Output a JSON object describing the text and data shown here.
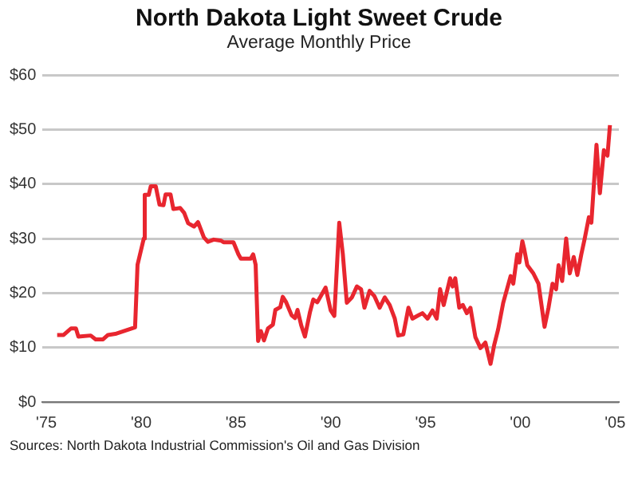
{
  "chart_data": {
    "type": "line",
    "title": "North Dakota Light Sweet Crude",
    "subtitle": "Average Monthly Price",
    "annotations": [
      "Sources: North Dakota Industrial Commission's Oil and Gas Division"
    ],
    "x": [
      1975.57,
      1975.91,
      1976.3,
      1976.56,
      1976.69,
      1977.34,
      1977.6,
      1977.99,
      1978.25,
      1978.64,
      1979.68,
      1979.81,
      1980.14,
      1980.19,
      1980.4,
      1980.51,
      1980.77,
      1980.97,
      1981.18,
      1981.29,
      1981.55,
      1981.7,
      1982.06,
      1982.27,
      1982.48,
      1982.79,
      1983.0,
      1983.31,
      1983.52,
      1983.83,
      1984.22,
      1984.35,
      1984.87,
      1985.13,
      1985.26,
      1985.78,
      1985.91,
      1986.04,
      1986.17,
      1986.32,
      1986.48,
      1986.69,
      1986.95,
      1987.08,
      1987.34,
      1987.47,
      1987.65,
      1987.94,
      1988.12,
      1988.25,
      1988.45,
      1988.64,
      1988.9,
      1989.08,
      1989.29,
      1989.73,
      1990.0,
      1990.19,
      1990.45,
      1990.64,
      1990.85,
      1991.12,
      1991.38,
      1991.6,
      1991.78,
      1992.05,
      1992.31,
      1992.58,
      1992.85,
      1993.11,
      1993.38,
      1993.56,
      1993.83,
      1994.1,
      1994.31,
      1994.57,
      1994.84,
      1995.11,
      1995.37,
      1995.59,
      1995.77,
      1995.96,
      1996.3,
      1996.43,
      1996.57,
      1996.78,
      1996.97,
      1997.18,
      1997.37,
      1997.63,
      1997.9,
      1998.16,
      1998.43,
      1998.62,
      1998.83,
      1999.1,
      1999.49,
      1999.63,
      1999.84,
      1999.95,
      2000.11,
      2000.21,
      2000.37,
      2000.69,
      2000.96,
      2001.28,
      2001.49,
      2001.7,
      2001.89,
      2002.02,
      2002.21,
      2002.42,
      2002.61,
      2002.82,
      2003.01,
      2003.22,
      2003.4,
      2003.62,
      2003.75,
      2004.02,
      2004.2,
      2004.41,
      2004.6,
      2004.73
    ],
    "series": [
      {
        "color": "#e8262f",
        "values": [
          12.3,
          12.3,
          13.5,
          13.5,
          12.0,
          12.2,
          11.5,
          11.5,
          12.3,
          12.5,
          13.7,
          25.2,
          30.0,
          38.0,
          38.0,
          39.6,
          39.6,
          36.2,
          36.1,
          38.1,
          38.1,
          35.4,
          35.6,
          34.7,
          32.8,
          32.2,
          33.0,
          30.2,
          29.4,
          29.8,
          29.6,
          29.3,
          29.3,
          27.1,
          26.3,
          26.3,
          27.1,
          25.2,
          11.2,
          13.0,
          11.3,
          13.5,
          14.2,
          16.9,
          17.4,
          19.3,
          18.3,
          15.9,
          15.4,
          16.9,
          14.0,
          12.0,
          16.4,
          18.8,
          18.3,
          21.0,
          16.8,
          15.8,
          32.9,
          27.1,
          18.2,
          19.2,
          21.2,
          20.7,
          17.3,
          20.4,
          19.4,
          17.3,
          19.2,
          17.8,
          15.3,
          12.2,
          12.4,
          17.3,
          15.3,
          15.8,
          16.3,
          15.3,
          16.8,
          15.3,
          20.7,
          17.8,
          22.7,
          21.2,
          22.7,
          17.3,
          17.8,
          16.3,
          17.3,
          11.9,
          9.9,
          10.9,
          7.0,
          10.4,
          13.3,
          18.2,
          23.1,
          21.7,
          27.1,
          25.6,
          29.5,
          28.0,
          25.1,
          23.6,
          21.7,
          13.8,
          17.3,
          21.7,
          20.7,
          25.1,
          22.2,
          30.0,
          23.6,
          26.6,
          23.3,
          27.1,
          30.0,
          33.9,
          32.9,
          47.2,
          38.3,
          46.2,
          45.2,
          50.8
        ]
      }
    ],
    "xlim": [
      1974.8,
      2005.2
    ],
    "xticks": [
      {
        "value": 1975,
        "label": "'75"
      },
      {
        "value": 1980,
        "label": "'80"
      },
      {
        "value": 1985,
        "label": "'85"
      },
      {
        "value": 1990,
        "label": "'90"
      },
      {
        "value": 1995,
        "label": "'95"
      },
      {
        "value": 2000,
        "label": "'00"
      },
      {
        "value": 2005,
        "label": "'05"
      }
    ],
    "ylim": [
      0,
      60
    ],
    "yticks": [
      {
        "value": 0,
        "label": "$0"
      },
      {
        "value": 10,
        "label": "$10"
      },
      {
        "value": 20,
        "label": "$20"
      },
      {
        "value": 30,
        "label": "$30"
      },
      {
        "value": 40,
        "label": "$40"
      },
      {
        "value": 50,
        "label": "$50"
      },
      {
        "value": 60,
        "label": "$60"
      }
    ],
    "grid": "y",
    "legend": false,
    "marker": "none",
    "line_style": "solid"
  }
}
